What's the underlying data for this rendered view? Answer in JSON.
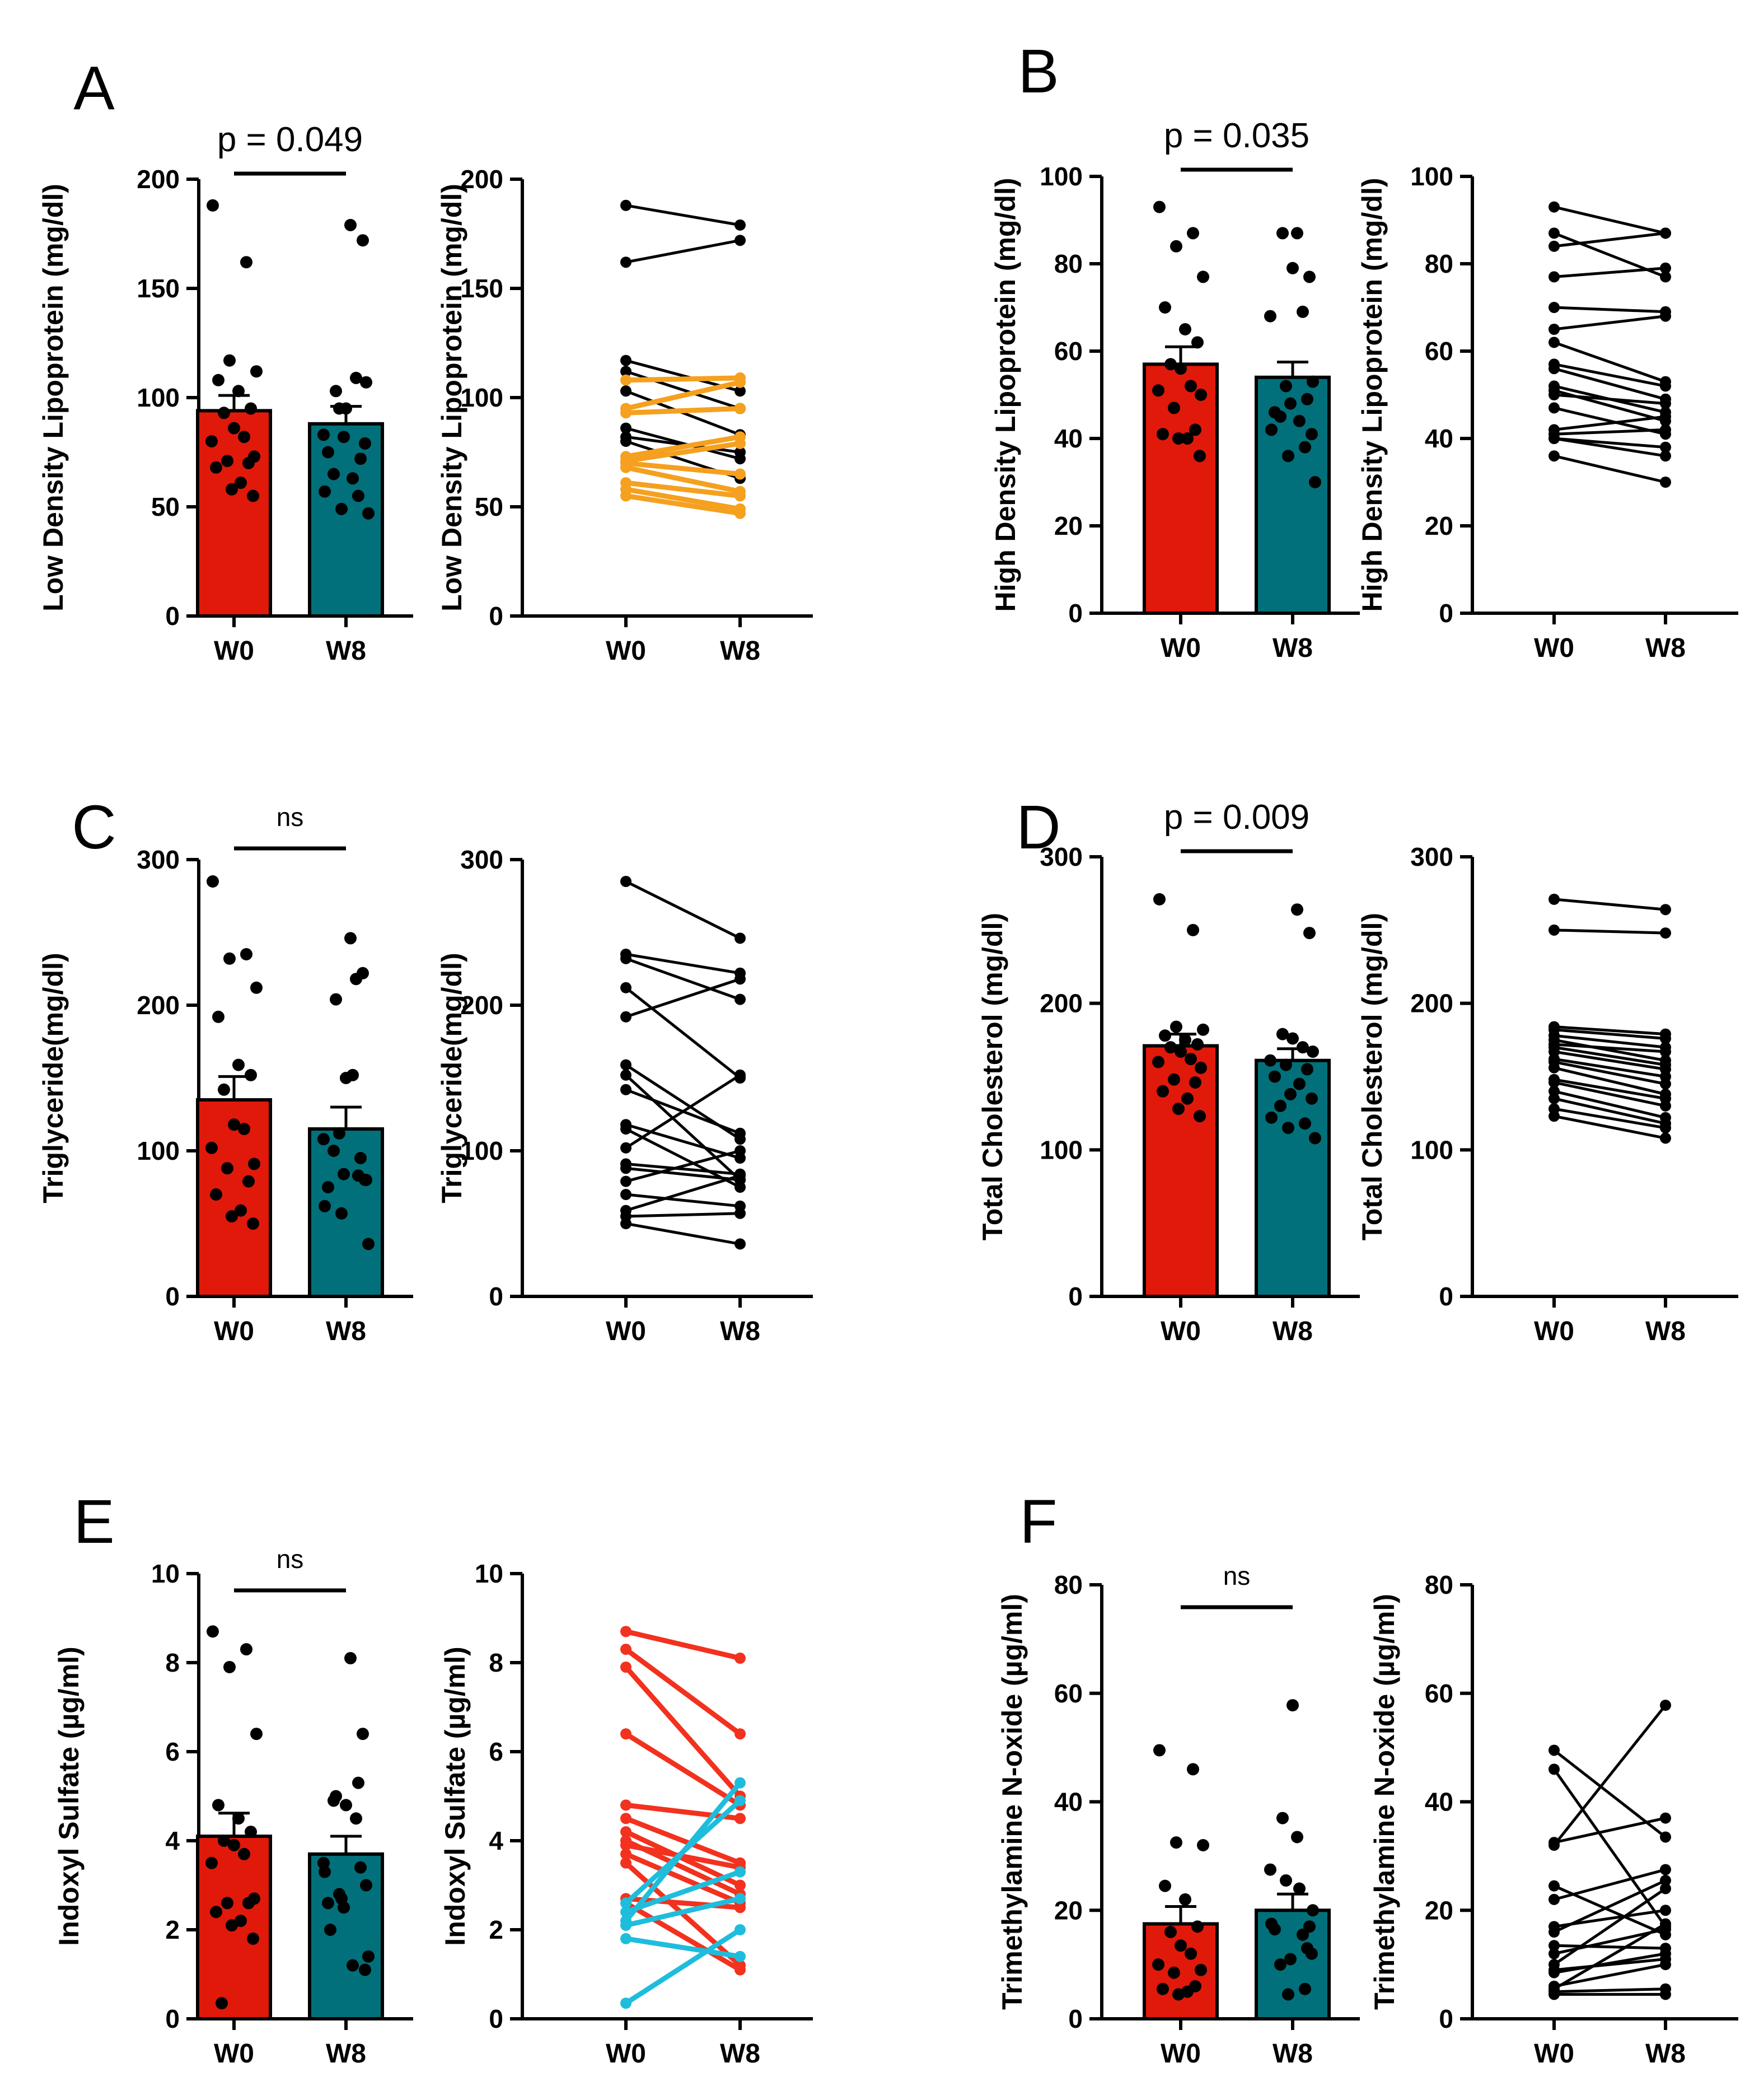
{
  "figure": {
    "bar_color_w0": "#e0190b",
    "bar_color_w8": "#02707a",
    "dot_color": "#000000",
    "line_color": "#000000"
  },
  "chart_data": [
    {
      "id": "A",
      "type": "bar",
      "panel_label": "A",
      "ylabel": "Low Density Lipoprotein (mg/dl)",
      "categories": [
        "W0",
        "W8"
      ],
      "ylim": [
        0,
        200
      ],
      "yticks": [
        0,
        50,
        100,
        150,
        200
      ],
      "significance": "p = 0.049",
      "means": [
        94,
        88
      ],
      "sem": [
        7,
        8
      ],
      "paired": [
        {
          "w0": 188,
          "w8": 179,
          "color": "#000000"
        },
        {
          "w0": 162,
          "w8": 172,
          "color": "#000000"
        },
        {
          "w0": 117,
          "w8": 103,
          "color": "#000000"
        },
        {
          "w0": 112,
          "w8": 95,
          "color": "#000000"
        },
        {
          "w0": 108,
          "w8": 109,
          "color": "#f5a01e"
        },
        {
          "w0": 103,
          "w8": 83,
          "color": "#000000"
        },
        {
          "w0": 95,
          "w8": 107,
          "color": "#f5a01e"
        },
        {
          "w0": 93,
          "w8": 95,
          "color": "#f5a01e"
        },
        {
          "w0": 86,
          "w8": 72,
          "color": "#000000"
        },
        {
          "w0": 82,
          "w8": 75,
          "color": "#000000"
        },
        {
          "w0": 80,
          "w8": 63,
          "color": "#000000"
        },
        {
          "w0": 73,
          "w8": 82,
          "color": "#f5a01e"
        },
        {
          "w0": 71,
          "w8": 79,
          "color": "#f5a01e"
        },
        {
          "w0": 70,
          "w8": 65,
          "color": "#f5a01e"
        },
        {
          "w0": 68,
          "w8": 57,
          "color": "#f5a01e"
        },
        {
          "w0": 61,
          "w8": 55,
          "color": "#f5a01e"
        },
        {
          "w0": 58,
          "w8": 49,
          "color": "#f5a01e"
        },
        {
          "w0": 55,
          "w8": 47,
          "color": "#f5a01e"
        }
      ]
    },
    {
      "id": "B",
      "type": "bar",
      "panel_label": "B",
      "ylabel": "High Density  Lipoprotein  (mg/dl)",
      "categories": [
        "W0",
        "W8"
      ],
      "ylim": [
        0,
        100
      ],
      "yticks": [
        0,
        20,
        40,
        60,
        80,
        100
      ],
      "significance": "p = 0.035",
      "means": [
        57,
        54
      ],
      "sem": [
        4,
        3.5
      ],
      "paired": [
        {
          "w0": 93,
          "w8": 87,
          "color": "#000000"
        },
        {
          "w0": 87,
          "w8": 77,
          "color": "#000000"
        },
        {
          "w0": 84,
          "w8": 87,
          "color": "#000000"
        },
        {
          "w0": 77,
          "w8": 79,
          "color": "#000000"
        },
        {
          "w0": 70,
          "w8": 69,
          "color": "#000000"
        },
        {
          "w0": 65,
          "w8": 68,
          "color": "#000000"
        },
        {
          "w0": 62,
          "w8": 53,
          "color": "#000000"
        },
        {
          "w0": 57,
          "w8": 52,
          "color": "#000000"
        },
        {
          "w0": 56,
          "w8": 49,
          "color": "#000000"
        },
        {
          "w0": 52,
          "w8": 46,
          "color": "#000000"
        },
        {
          "w0": 51,
          "w8": 44,
          "color": "#000000"
        },
        {
          "w0": 50,
          "w8": 48,
          "color": "#000000"
        },
        {
          "w0": 47,
          "w8": 41,
          "color": "#000000"
        },
        {
          "w0": 42,
          "w8": 45,
          "color": "#000000"
        },
        {
          "w0": 41,
          "w8": 42,
          "color": "#000000"
        },
        {
          "w0": 40,
          "w8": 38,
          "color": "#000000"
        },
        {
          "w0": 40,
          "w8": 36,
          "color": "#000000"
        },
        {
          "w0": 36,
          "w8": 30,
          "color": "#000000"
        }
      ]
    },
    {
      "id": "C",
      "type": "bar",
      "panel_label": "C",
      "ylabel": "Triglyceride(mg/dl)",
      "categories": [
        "W0",
        "W8"
      ],
      "ylim": [
        0,
        300
      ],
      "yticks": [
        0,
        100,
        200,
        300
      ],
      "significance": "ns",
      "means": [
        135,
        115
      ],
      "sem": [
        16,
        15
      ],
      "paired": [
        {
          "w0": 285,
          "w8": 246,
          "color": "#000000"
        },
        {
          "w0": 235,
          "w8": 222,
          "color": "#000000"
        },
        {
          "w0": 232,
          "w8": 204,
          "color": "#000000"
        },
        {
          "w0": 212,
          "w8": 150,
          "color": "#000000"
        },
        {
          "w0": 192,
          "w8": 218,
          "color": "#000000"
        },
        {
          "w0": 159,
          "w8": 108,
          "color": "#000000"
        },
        {
          "w0": 152,
          "w8": 80,
          "color": "#000000"
        },
        {
          "w0": 142,
          "w8": 112,
          "color": "#000000"
        },
        {
          "w0": 118,
          "w8": 95,
          "color": "#000000"
        },
        {
          "w0": 115,
          "w8": 75,
          "color": "#000000"
        },
        {
          "w0": 102,
          "w8": 152,
          "color": "#000000"
        },
        {
          "w0": 91,
          "w8": 84,
          "color": "#000000"
        },
        {
          "w0": 88,
          "w8": 80,
          "color": "#000000"
        },
        {
          "w0": 79,
          "w8": 100,
          "color": "#000000"
        },
        {
          "w0": 70,
          "w8": 62,
          "color": "#000000"
        },
        {
          "w0": 59,
          "w8": 83,
          "color": "#000000"
        },
        {
          "w0": 55,
          "w8": 57,
          "color": "#000000"
        },
        {
          "w0": 50,
          "w8": 36,
          "color": "#000000"
        }
      ]
    },
    {
      "id": "D",
      "type": "bar",
      "panel_label": "D",
      "ylabel": "Total Cholesterol (mg/dl)",
      "categories": [
        "W0",
        "W8"
      ],
      "ylim": [
        0,
        300
      ],
      "yticks": [
        0,
        100,
        200,
        300
      ],
      "significance": "p = 0.009",
      "means": [
        171,
        161
      ],
      "sem": [
        8,
        8
      ],
      "paired": [
        {
          "w0": 271,
          "w8": 264,
          "color": "#000000"
        },
        {
          "w0": 250,
          "w8": 248,
          "color": "#000000"
        },
        {
          "w0": 184,
          "w8": 179,
          "color": "#000000"
        },
        {
          "w0": 182,
          "w8": 176,
          "color": "#000000"
        },
        {
          "w0": 178,
          "w8": 170,
          "color": "#000000"
        },
        {
          "w0": 175,
          "w8": 161,
          "color": "#000000"
        },
        {
          "w0": 172,
          "w8": 167,
          "color": "#000000"
        },
        {
          "w0": 170,
          "w8": 158,
          "color": "#000000"
        },
        {
          "w0": 167,
          "w8": 155,
          "color": "#000000"
        },
        {
          "w0": 162,
          "w8": 150,
          "color": "#000000"
        },
        {
          "w0": 160,
          "w8": 145,
          "color": "#000000"
        },
        {
          "w0": 156,
          "w8": 138,
          "color": "#000000"
        },
        {
          "w0": 148,
          "w8": 135,
          "color": "#000000"
        },
        {
          "w0": 146,
          "w8": 130,
          "color": "#000000"
        },
        {
          "w0": 140,
          "w8": 122,
          "color": "#000000"
        },
        {
          "w0": 135,
          "w8": 118,
          "color": "#000000"
        },
        {
          "w0": 128,
          "w8": 115,
          "color": "#000000"
        },
        {
          "w0": 123,
          "w8": 108,
          "color": "#000000"
        }
      ]
    },
    {
      "id": "E",
      "type": "bar",
      "panel_label": "E",
      "ylabel": "Indoxyl Sulfate (µg/ml)",
      "categories": [
        "W0",
        "W8"
      ],
      "ylim": [
        0,
        10
      ],
      "yticks": [
        0,
        2,
        4,
        6,
        8,
        10
      ],
      "significance": "ns",
      "means": [
        4.1,
        3.7
      ],
      "sem": [
        0.52,
        0.4
      ],
      "paired": [
        {
          "w0": 8.7,
          "w8": 8.1,
          "color": "#f2311e"
        },
        {
          "w0": 8.3,
          "w8": 6.4,
          "color": "#f2311e"
        },
        {
          "w0": 7.9,
          "w8": 5.0,
          "color": "#f2311e"
        },
        {
          "w0": 6.4,
          "w8": 4.8,
          "color": "#f2311e"
        },
        {
          "w0": 4.8,
          "w8": 4.5,
          "color": "#f2311e"
        },
        {
          "w0": 4.5,
          "w8": 3.5,
          "color": "#f2311e"
        },
        {
          "w0": 4.2,
          "w8": 3.0,
          "color": "#f2311e"
        },
        {
          "w0": 4.0,
          "w8": 2.8,
          "color": "#f2311e"
        },
        {
          "w0": 3.9,
          "w8": 3.4,
          "color": "#f2311e"
        },
        {
          "w0": 3.7,
          "w8": 2.6,
          "color": "#f2311e"
        },
        {
          "w0": 3.5,
          "w8": 1.2,
          "color": "#f2311e"
        },
        {
          "w0": 2.7,
          "w8": 2.5,
          "color": "#f2311e"
        },
        {
          "w0": 2.6,
          "w8": 1.1,
          "color": "#f2311e"
        },
        {
          "w0": 2.6,
          "w8": 4.9,
          "color": "#1ebddc"
        },
        {
          "w0": 2.4,
          "w8": 3.3,
          "color": "#1ebddc"
        },
        {
          "w0": 2.2,
          "w8": 5.3,
          "color": "#1ebddc"
        },
        {
          "w0": 2.1,
          "w8": 2.7,
          "color": "#1ebddc"
        },
        {
          "w0": 1.8,
          "w8": 1.4,
          "color": "#1ebddc"
        },
        {
          "w0": 0.35,
          "w8": 2.0,
          "color": "#1ebddc"
        }
      ]
    },
    {
      "id": "F",
      "type": "bar",
      "panel_label": "F",
      "ylabel": "Trimethylamine N-oxide (µg/ml)",
      "categories": [
        "W0",
        "W8"
      ],
      "ylim": [
        0,
        80
      ],
      "yticks": [
        0,
        20,
        40,
        60,
        80
      ],
      "significance": "ns",
      "means": [
        17.5,
        20
      ],
      "sem": [
        3.2,
        3
      ],
      "paired": [
        {
          "w0": 49.5,
          "w8": 33.5,
          "color": "#000000"
        },
        {
          "w0": 46,
          "w8": 17,
          "color": "#000000"
        },
        {
          "w0": 32.5,
          "w8": 37,
          "color": "#000000"
        },
        {
          "w0": 32,
          "w8": 57.8,
          "color": "#000000"
        },
        {
          "w0": 24.5,
          "w8": 15.5,
          "color": "#000000"
        },
        {
          "w0": 22,
          "w8": 27.5,
          "color": "#000000"
        },
        {
          "w0": 17,
          "w8": 20,
          "color": "#000000"
        },
        {
          "w0": 16,
          "w8": 25.5,
          "color": "#000000"
        },
        {
          "w0": 13.5,
          "w8": 13,
          "color": "#000000"
        },
        {
          "w0": 12,
          "w8": 16.5,
          "color": "#000000"
        },
        {
          "w0": 10,
          "w8": 24,
          "color": "#000000"
        },
        {
          "w0": 9,
          "w8": 11,
          "color": "#000000"
        },
        {
          "w0": 8.5,
          "w8": 12,
          "color": "#000000"
        },
        {
          "w0": 6,
          "w8": 10,
          "color": "#000000"
        },
        {
          "w0": 5.5,
          "w8": 17.5,
          "color": "#000000"
        },
        {
          "w0": 5,
          "w8": 5.5,
          "color": "#000000"
        },
        {
          "w0": 4.5,
          "w8": 4.5,
          "color": "#000000"
        }
      ]
    }
  ]
}
